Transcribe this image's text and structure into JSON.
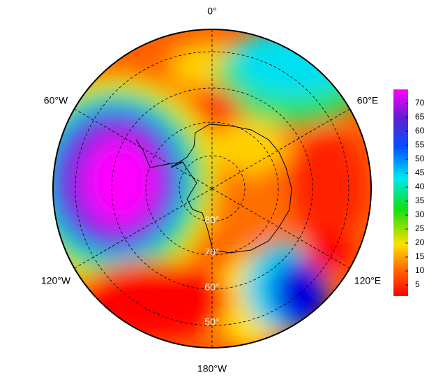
{
  "map": {
    "longitude_labels": [
      "0°",
      "60°E",
      "120°E",
      "180°W",
      "120°W",
      "60°W"
    ],
    "latitude_labels": [
      "80°",
      "70°",
      "60°",
      "50°"
    ],
    "colorbar": {
      "clim": [
        1,
        75
      ],
      "ticks": [
        5,
        10,
        15,
        20,
        25,
        30,
        35,
        40,
        45,
        50,
        55,
        60,
        65,
        70
      ]
    }
  }
}
